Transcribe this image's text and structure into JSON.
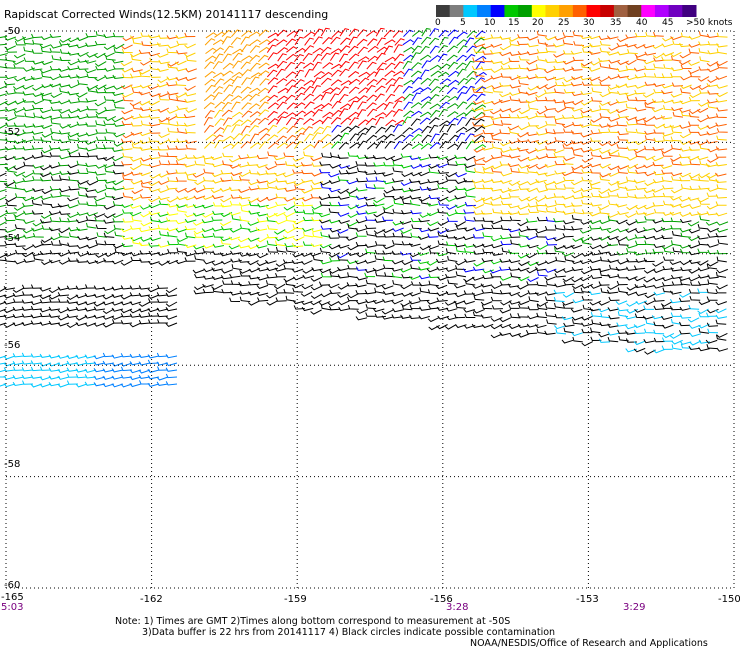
{
  "title": "Rapidscat Corrected Winds(12.5KM) 20141117 descending",
  "legend": {
    "unit_label": ">50 knots",
    "tick_labels": [
      "0",
      "5",
      "10",
      "15",
      "20",
      "25",
      "30",
      "35",
      "40",
      "45"
    ],
    "colors": [
      "#3c3c3c",
      "#7e7e7e",
      "#00c8ff",
      "#0080ff",
      "#0000ff",
      "#00c800",
      "#00a000",
      "#ffff00",
      "#ffd000",
      "#ffa000",
      "#ff6000",
      "#ff0000",
      "#c80000",
      "#a06040",
      "#704020",
      "#ff00ff",
      "#b000ff",
      "#7000c0",
      "#400080"
    ]
  },
  "axes": {
    "lat_labels": [
      "-50",
      "-52",
      "-54",
      "-56",
      "-58",
      "-60"
    ],
    "lon_labels": [
      "-165",
      "-162",
      "-159",
      "-156",
      "-153",
      "-150"
    ],
    "lon_values": [
      -165,
      -162,
      -159,
      -156,
      -153,
      -150
    ],
    "lat_values": [
      -50,
      -52,
      -54,
      -56,
      -58,
      -60
    ]
  },
  "time_labels": [
    "5:03",
    "3:28",
    "3:29"
  ],
  "notes": {
    "line1": "Note: 1) Times are GMT 2)Times along bottom correspond to measurement at -50S",
    "line2": "3)Data buffer is 22 hrs from 20141117 4) Black circles indicate possible contamination"
  },
  "credit": "NOAA/NESDIS/Office of Research and Applications"
}
